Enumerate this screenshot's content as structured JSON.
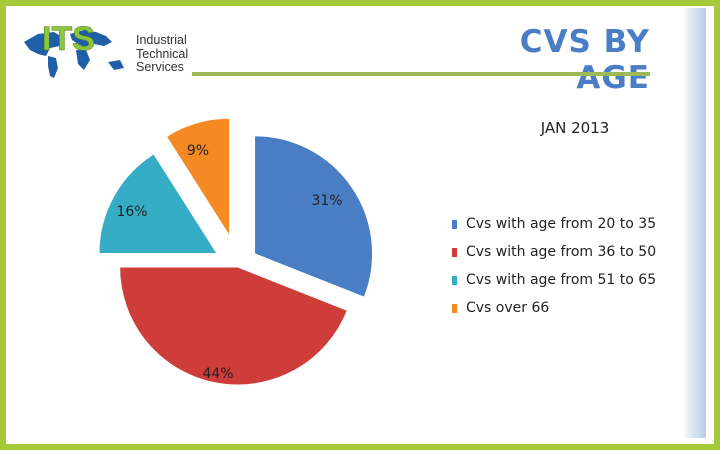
{
  "logo": {
    "mark": "ITS",
    "line1": "Industrial",
    "line2": "Technical",
    "line3": "Services"
  },
  "slide": {
    "title": "CVS BY AGE",
    "subtitle": "JAN 2013"
  },
  "chart_data": {
    "type": "pie",
    "exploded": true,
    "title": "JAN 2013",
    "categories": [
      "Cvs with age from 20 to 35",
      "Cvs with age from 36 to 50",
      "Cvs with age from 51 to 65",
      "Cvs over 66"
    ],
    "values": [
      31,
      44,
      16,
      9
    ],
    "labels": [
      "31%",
      "44%",
      "16%",
      "9%"
    ],
    "colors": [
      "#4a7ec4",
      "#cf3d3a",
      "#35adc5",
      "#f58a25"
    ],
    "legend": "right"
  }
}
